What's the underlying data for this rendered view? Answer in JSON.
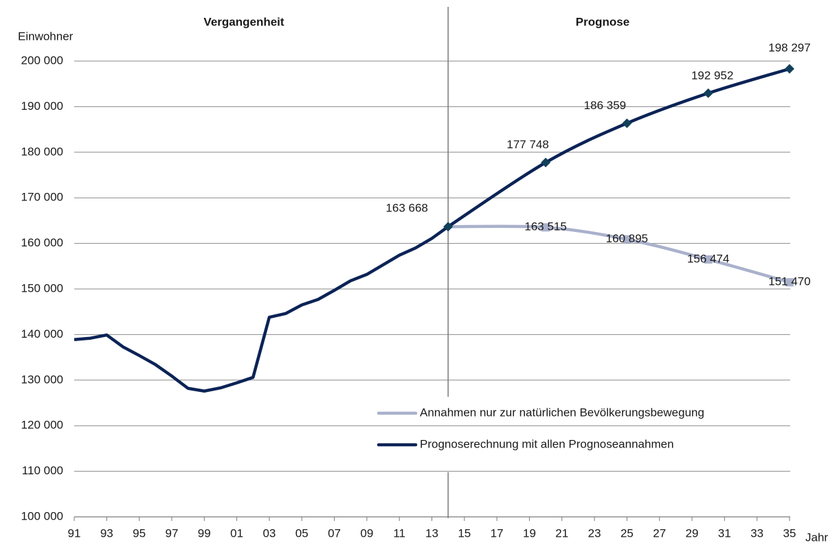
{
  "chart_data": {
    "type": "line",
    "y_label": "Einwohner",
    "x_label": "Jahr",
    "sections": [
      {
        "text": "Vergangenheit"
      },
      {
        "text": "Prognose"
      }
    ],
    "divider": 2014,
    "xlim": [
      1991,
      2035
    ],
    "xticks": [
      {
        "value": 1991,
        "label": "91"
      },
      {
        "value": 1993,
        "label": "93"
      },
      {
        "value": 1995,
        "label": "95"
      },
      {
        "value": 1997,
        "label": "97"
      },
      {
        "value": 1999,
        "label": "99"
      },
      {
        "value": 2001,
        "label": "01"
      },
      {
        "value": 2003,
        "label": "03"
      },
      {
        "value": 2005,
        "label": "05"
      },
      {
        "value": 2007,
        "label": "07"
      },
      {
        "value": 2009,
        "label": "09"
      },
      {
        "value": 2011,
        "label": "11"
      },
      {
        "value": 2013,
        "label": "13"
      },
      {
        "value": 2015,
        "label": "15"
      },
      {
        "value": 2017,
        "label": "17"
      },
      {
        "value": 2019,
        "label": "19"
      },
      {
        "value": 2021,
        "label": "21"
      },
      {
        "value": 2023,
        "label": "23"
      },
      {
        "value": 2025,
        "label": "25"
      },
      {
        "value": 2027,
        "label": "27"
      },
      {
        "value": 2029,
        "label": "29"
      },
      {
        "value": 2031,
        "label": "31"
      },
      {
        "value": 2033,
        "label": "33"
      },
      {
        "value": 2035,
        "label": "35"
      }
    ],
    "ylim": [
      100000,
      200000
    ],
    "yticks": [
      {
        "value": 100000,
        "label": "100 000"
      },
      {
        "value": 110000,
        "label": "110 000"
      },
      {
        "value": 120000,
        "label": "120 000"
      },
      {
        "value": 130000,
        "label": "130 000"
      },
      {
        "value": 140000,
        "label": "140 000"
      },
      {
        "value": 150000,
        "label": "150 000"
      },
      {
        "value": 160000,
        "label": "160 000"
      },
      {
        "value": 170000,
        "label": "170 000"
      },
      {
        "value": 180000,
        "label": "180 000"
      },
      {
        "value": 190000,
        "label": "190 000"
      },
      {
        "value": 200000,
        "label": "200 000"
      }
    ],
    "grid": true,
    "series": [
      {
        "name": "Annahmen nur zur natürlichen Bevölkerungsbewegung",
        "color": "#aab1cc",
        "marker": "square",
        "marker_color": "#aab1cc",
        "x": [
          2014,
          2020,
          2025,
          2030,
          2035
        ],
        "values": [
          163668,
          163515,
          160895,
          156474,
          151470
        ],
        "value_labels": [
          null,
          "163 515",
          "160 895",
          "156 474",
          "151 470"
        ]
      },
      {
        "name": "Prognoserechnung mit allen Prognoseannahmen",
        "color": "#0b2356",
        "marker": "diamond",
        "marker_color": "#12405a",
        "x": [
          1991,
          1992,
          1993,
          1994,
          1995,
          1996,
          1997,
          1998,
          1999,
          2000,
          2001,
          2002,
          2003,
          2004,
          2005,
          2006,
          2007,
          2008,
          2009,
          2010,
          2011,
          2012,
          2013,
          2014,
          2020,
          2025,
          2030,
          2035
        ],
        "values": [
          138900,
          139200,
          139900,
          137300,
          135400,
          133400,
          130900,
          128200,
          127600,
          128300,
          129400,
          130600,
          143800,
          144600,
          146500,
          147700,
          149700,
          151800,
          153200,
          155300,
          157400,
          159000,
          161100,
          163668,
          177748,
          186359,
          192952,
          198297
        ],
        "value_labels": [
          null,
          null,
          null,
          null,
          null,
          null,
          null,
          null,
          null,
          null,
          null,
          null,
          null,
          null,
          null,
          null,
          null,
          null,
          null,
          null,
          null,
          null,
          null,
          "163 668",
          "177 748",
          "186 359",
          "192 952",
          "198 297"
        ]
      }
    ]
  }
}
